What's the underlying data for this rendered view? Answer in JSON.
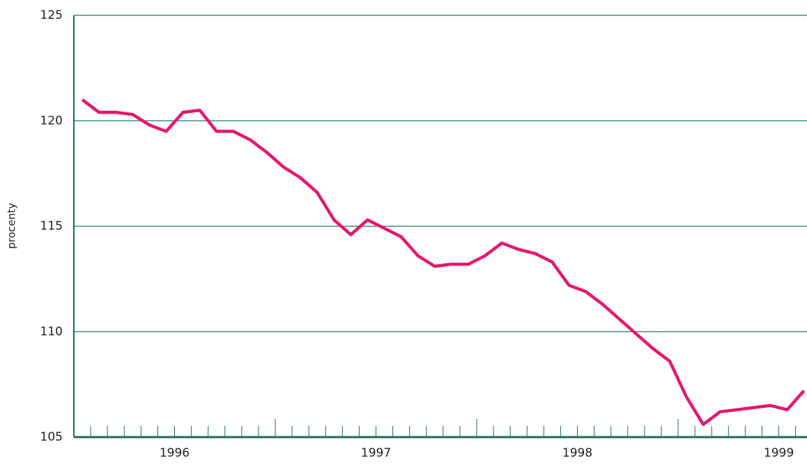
{
  "chart_data": {
    "type": "line",
    "ylabel": "procenty",
    "x": [
      1996.0417,
      1996.125,
      1996.2083,
      1996.2917,
      1996.375,
      1996.4583,
      1996.5417,
      1996.625,
      1996.7083,
      1996.7917,
      1996.875,
      1996.9583,
      1997.0417,
      1997.125,
      1997.2083,
      1997.2917,
      1997.375,
      1997.4583,
      1997.5417,
      1997.625,
      1997.7083,
      1997.7917,
      1997.875,
      1997.9583,
      1998.0417,
      1998.125,
      1998.2083,
      1998.2917,
      1998.375,
      1998.4583,
      1998.5417,
      1998.625,
      1998.7083,
      1998.7917,
      1998.875,
      1998.9583,
      1999.0417,
      1999.125,
      1999.2083,
      1999.2917,
      1999.375,
      1999.4583,
      1999.5417,
      1999.625
    ],
    "series": [
      {
        "color": "#e5176f",
        "values": [
          121.0,
          120.4,
          120.4,
          120.3,
          119.8,
          119.5,
          120.4,
          120.5,
          119.5,
          119.5,
          119.1,
          118.5,
          117.8,
          117.3,
          116.6,
          115.3,
          114.6,
          115.3,
          114.9,
          114.5,
          113.6,
          113.1,
          113.2,
          113.2,
          113.6,
          114.2,
          113.9,
          113.7,
          113.3,
          112.2,
          111.9,
          111.3,
          110.6,
          109.9,
          109.2,
          108.6,
          106.9,
          105.6,
          106.2,
          106.3,
          106.4,
          106.5,
          106.3,
          107.2
        ]
      }
    ],
    "xlim": [
      1996,
      1999.64
    ],
    "xticks": [
      {
        "value": 1996.5,
        "label": "1996"
      },
      {
        "value": 1997.5,
        "label": "1997"
      },
      {
        "value": 1998.5,
        "label": "1998"
      },
      {
        "value": 1999.5,
        "label": "1999"
      }
    ],
    "xmajorticks": [
      1997,
      1998,
      1999
    ],
    "xminorticks": [
      1996.0833,
      1996.1667,
      1996.25,
      1996.3333,
      1996.4167,
      1996.5,
      1996.5833,
      1996.6667,
      1996.75,
      1996.8333,
      1996.9167,
      1997.0833,
      1997.1667,
      1997.25,
      1997.3333,
      1997.4167,
      1997.5,
      1997.5833,
      1997.6667,
      1997.75,
      1997.8333,
      1997.9167,
      1998.0833,
      1998.1667,
      1998.25,
      1998.3333,
      1998.4167,
      1998.5,
      1998.5833,
      1998.6667,
      1998.75,
      1998.8333,
      1998.9167,
      1999.0833,
      1999.1667,
      1999.25,
      1999.3333,
      1999.4167,
      1999.5,
      1999.5833
    ],
    "ylim": [
      105,
      125
    ],
    "yticks": [
      105,
      110,
      115,
      120,
      125
    ],
    "grid": true,
    "grid_color": "#1b7a6c"
  }
}
